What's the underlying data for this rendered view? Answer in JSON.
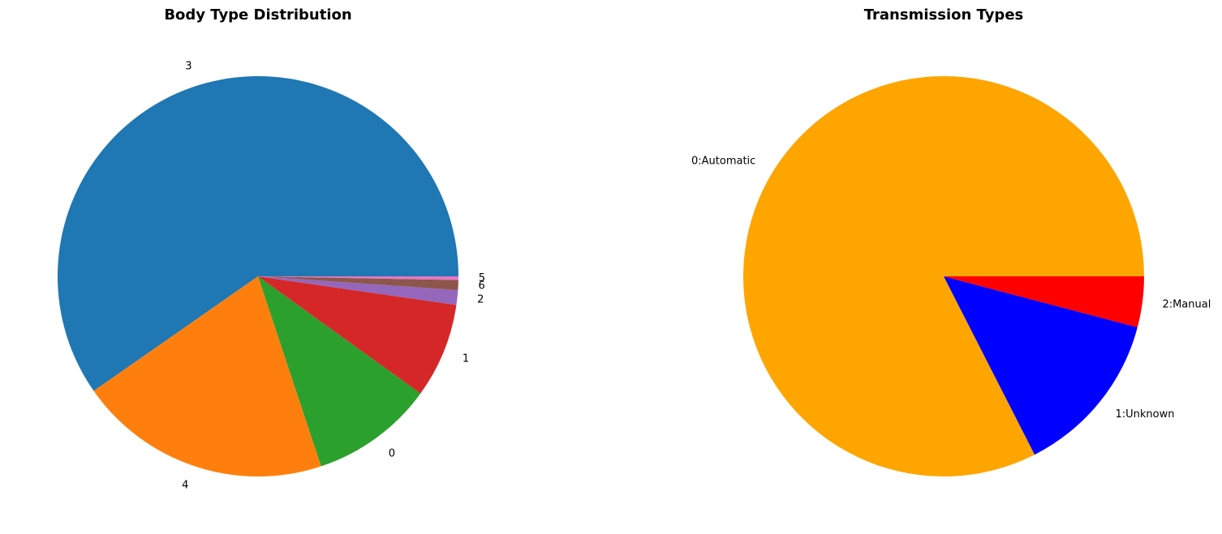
{
  "chart_data": [
    {
      "type": "pie",
      "title": "Body Type Distribution",
      "start_angle": 0,
      "direction": "counterclockwise",
      "slices": [
        {
          "label": "3",
          "value": 60.0,
          "color": "#1f77b4"
        },
        {
          "label": "4",
          "value": 20.5,
          "color": "#ff7f0e"
        },
        {
          "label": "0",
          "value": 10.0,
          "color": "#2ca02c"
        },
        {
          "label": "1",
          "value": 7.7,
          "color": "#d62728"
        },
        {
          "label": "2",
          "value": 1.2,
          "color": "#9467bd"
        },
        {
          "label": "6",
          "value": 0.8,
          "color": "#8c564b"
        },
        {
          "label": "5",
          "value": 0.3,
          "color": "#e377c2"
        }
      ]
    },
    {
      "type": "pie",
      "title": "Transmission Types",
      "start_angle": 0,
      "direction": "counterclockwise",
      "slices": [
        {
          "label": "0:Automatic",
          "value": 82.5,
          "color": "#ffa500"
        },
        {
          "label": "1:Unknown",
          "value": 13.4,
          "color": "#0000ff"
        },
        {
          "label": "2:Manual",
          "value": 4.1,
          "color": "#ff0000"
        }
      ]
    }
  ]
}
